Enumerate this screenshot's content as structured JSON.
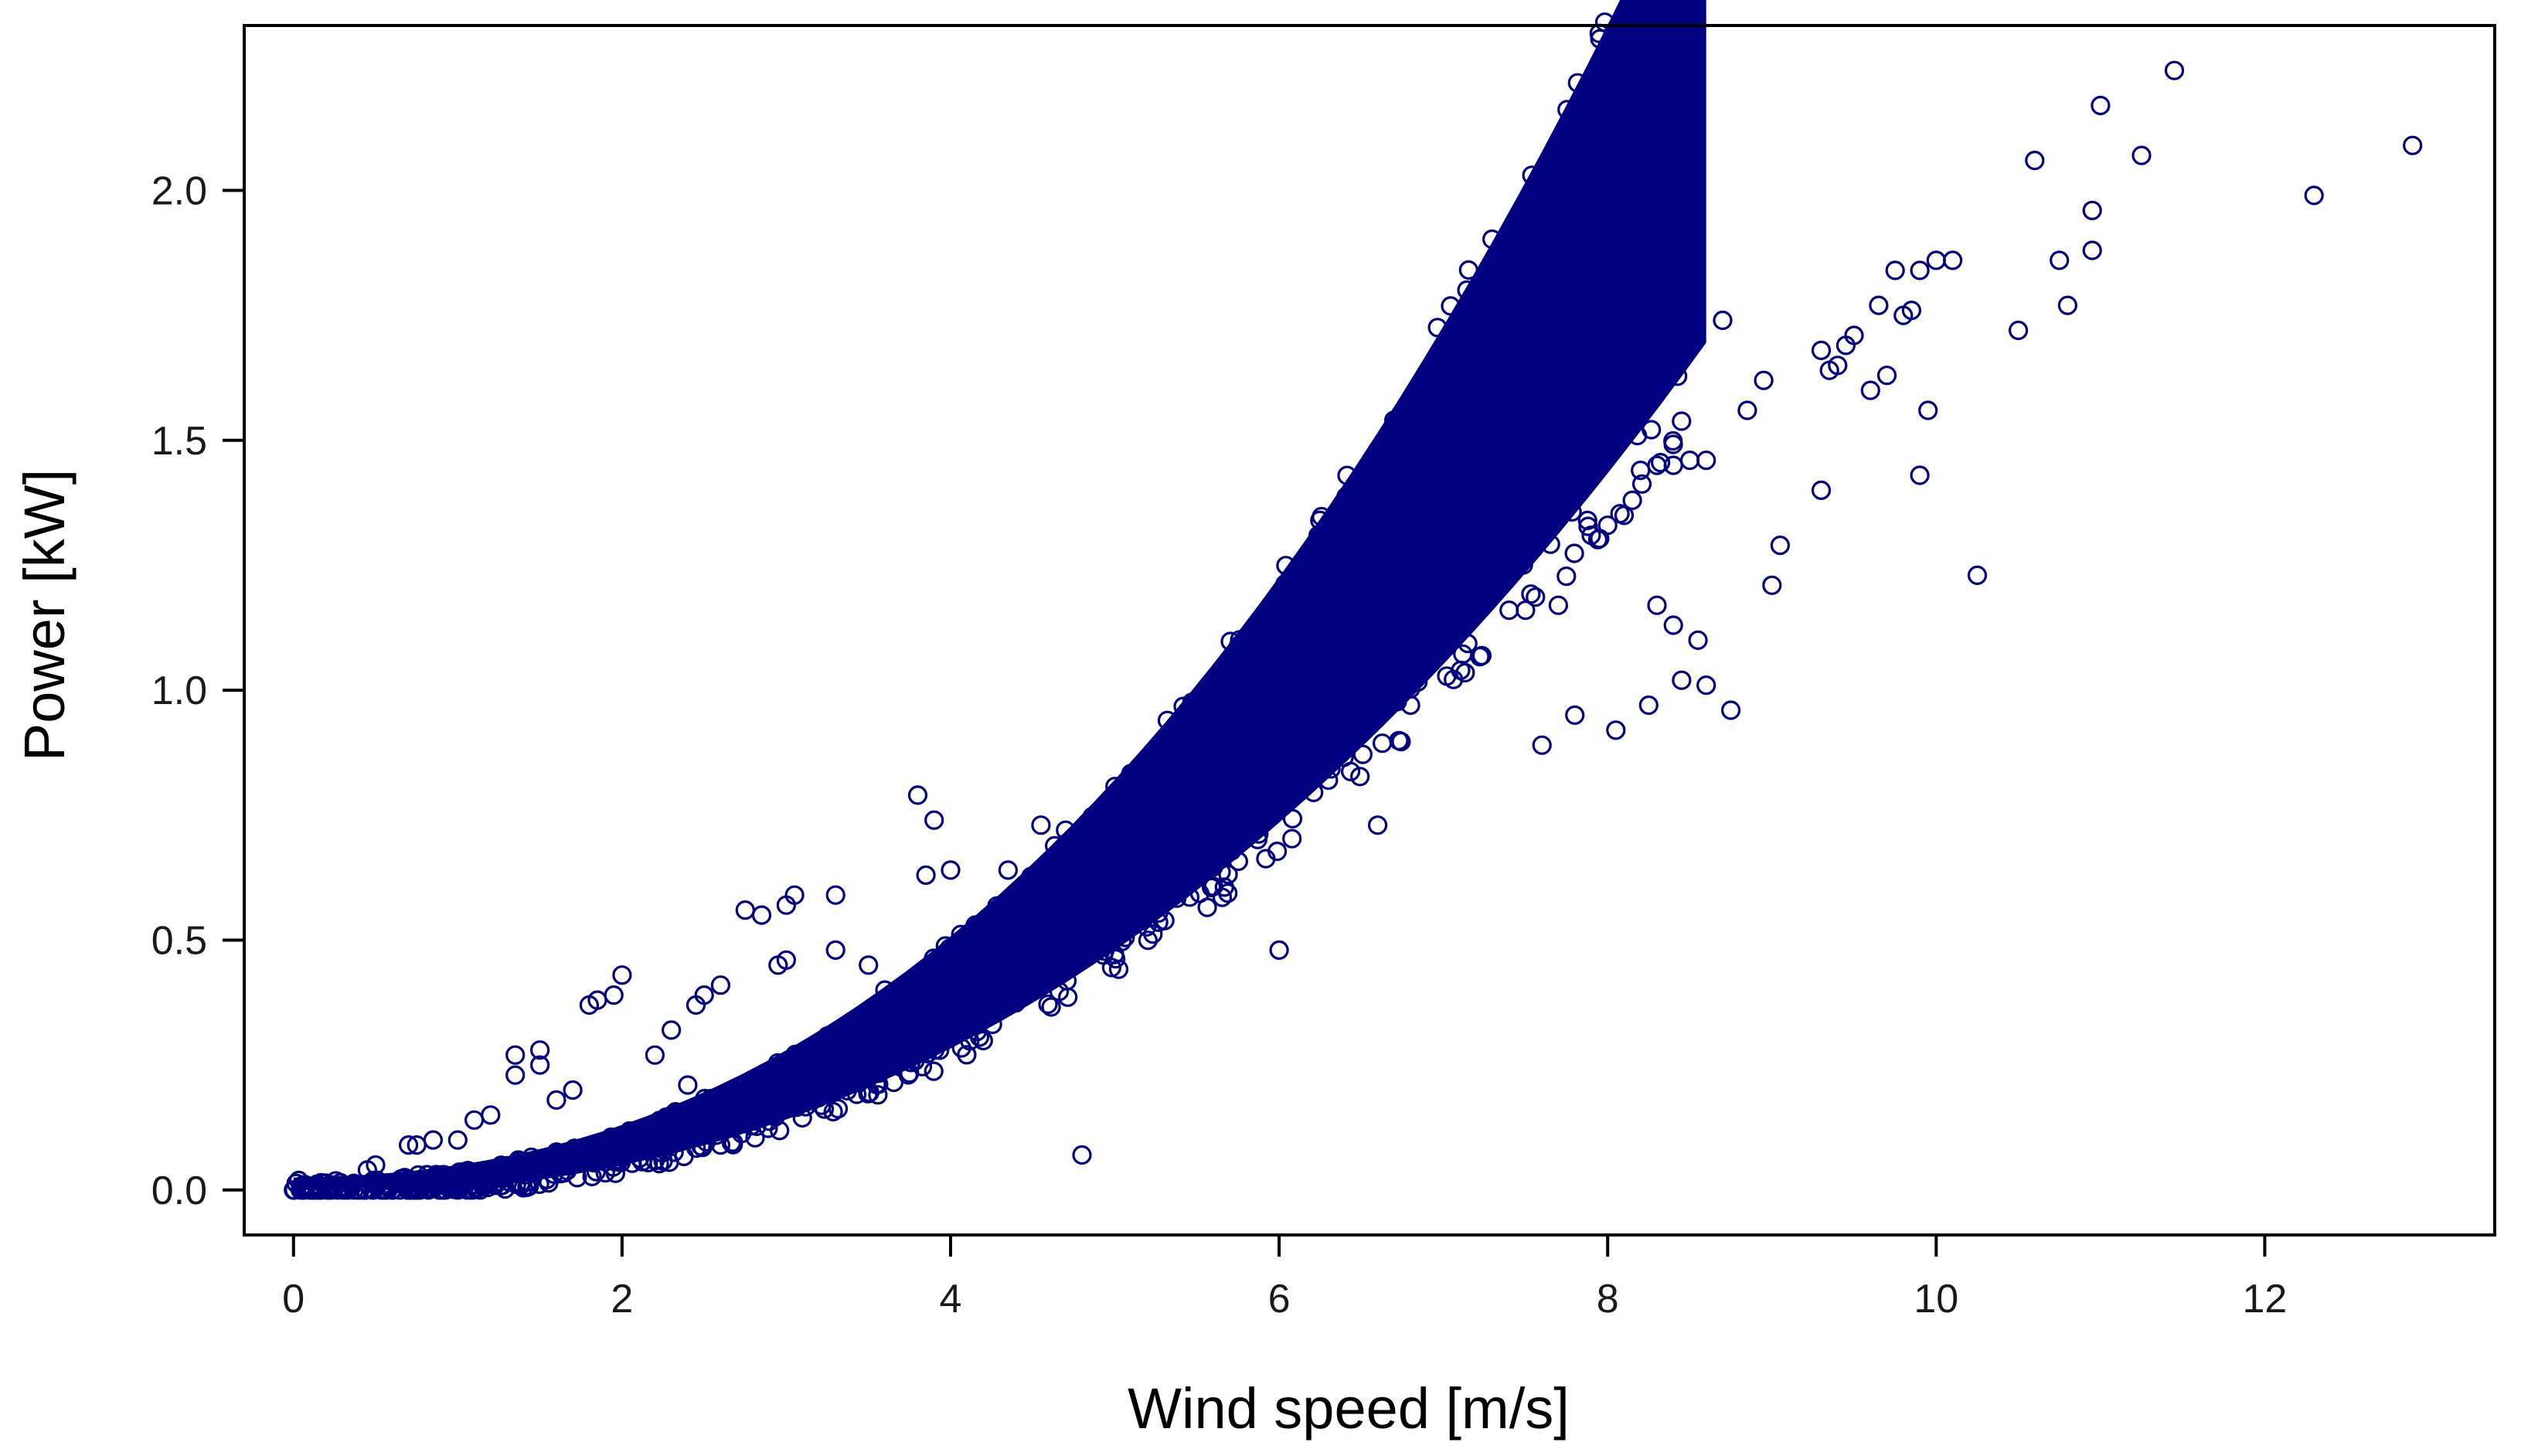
{
  "chart_data": {
    "type": "scatter",
    "title": "",
    "xlabel": "Wind speed [m/s]",
    "ylabel": "Power [kW]",
    "xlim": [
      -0.3,
      13.4
    ],
    "ylim": [
      -0.09,
      2.33
    ],
    "x_ticks": [
      0,
      2,
      4,
      6,
      8,
      10,
      12
    ],
    "x_tick_labels": [
      "0",
      "2",
      "4",
      "6",
      "8",
      "10",
      "12"
    ],
    "y_ticks": [
      0.0,
      0.5,
      1.0,
      1.5,
      2.0
    ],
    "y_tick_labels": [
      "0.0",
      "0.5",
      "1.0",
      "1.5",
      "2.0"
    ],
    "grid": false,
    "legend": "none",
    "marker": "open-circle",
    "color": "#000080",
    "series": [
      {
        "values_note_free": true,
        "x": [
          12.9,
          11.45,
          11.0,
          11.25,
          10.6,
          10.95,
          10.95,
          10.75,
          10.8,
          10.5,
          12.3,
          10.0,
          10.1,
          9.9,
          9.75,
          9.8,
          9.85,
          9.65,
          9.7,
          9.5,
          9.45,
          9.4,
          9.3,
          9.35,
          9.6,
          9.95,
          9.9,
          9.3,
          9.05,
          9.0,
          10.25,
          8.75,
          8.7,
          8.95,
          8.85,
          8.6,
          8.5,
          8.4,
          8.3,
          8.2,
          8.15,
          8.1,
          8.0,
          7.9,
          8.3,
          8.4,
          8.45,
          8.6,
          7.4,
          7.5,
          7.7,
          7.0,
          6.9,
          6.8,
          6.6,
          6.5,
          6.2,
          6.15,
          5.95,
          5.95,
          5.9,
          5.4,
          5.1,
          5.2,
          4.95,
          4.55,
          4.45,
          4.4,
          4.35,
          4.0,
          3.8,
          3.9,
          3.85,
          3.5,
          3.3,
          3.05,
          3.0,
          3.0,
          2.95,
          2.85,
          2.75,
          2.6,
          2.5,
          2.45,
          2.3,
          2.0,
          1.95,
          1.85,
          1.8,
          1.5,
          1.5,
          1.35,
          1.35,
          1.6,
          1.7,
          1.2,
          1.1,
          1.0,
          0.85,
          0.75,
          0.7,
          0.5,
          0.45,
          0.9,
          4.8,
          5.5,
          5.2,
          4.7,
          3.3,
          2.2,
          6.0,
          6.6,
          7.6,
          7.8,
          8.25,
          8.05,
          8.55,
          2.4,
          3.6,
          4.15,
          4.3,
          4.6,
          5.6,
          6.3,
          2.6,
          1.3
        ],
        "y": [
          2.09,
          2.24,
          2.17,
          2.07,
          2.06,
          1.96,
          1.88,
          1.86,
          1.77,
          1.72,
          1.99,
          1.86,
          1.86,
          1.84,
          1.84,
          1.75,
          1.76,
          1.77,
          1.63,
          1.71,
          1.69,
          1.65,
          1.68,
          1.64,
          1.6,
          1.56,
          1.43,
          1.4,
          1.29,
          1.21,
          1.23,
          0.96,
          1.74,
          1.62,
          1.56,
          1.46,
          1.46,
          1.45,
          1.45,
          1.44,
          1.38,
          1.35,
          1.33,
          1.31,
          1.17,
          1.13,
          1.02,
          1.01,
          1.16,
          1.16,
          1.17,
          1.12,
          1.06,
          0.97,
          0.97,
          0.96,
          0.99,
          0.94,
          0.87,
          0.84,
          0.93,
          0.88,
          0.76,
          0.76,
          0.75,
          0.73,
          0.6,
          0.55,
          0.64,
          0.64,
          0.79,
          0.74,
          0.63,
          0.45,
          0.59,
          0.59,
          0.57,
          0.46,
          0.45,
          0.55,
          0.56,
          0.41,
          0.39,
          0.37,
          0.32,
          0.43,
          0.39,
          0.38,
          0.37,
          0.28,
          0.25,
          0.27,
          0.23,
          0.18,
          0.2,
          0.15,
          0.14,
          0.1,
          0.1,
          0.09,
          0.09,
          0.05,
          0.04,
          0.03,
          0.07,
          0.87,
          0.8,
          0.72,
          0.48,
          0.27,
          0.48,
          0.73,
          0.89,
          0.95,
          0.97,
          0.92,
          1.1,
          0.21,
          0.4,
          0.53,
          0.56,
          0.51,
          0.7,
          0.82,
          0.09,
          0.04
        ]
      }
    ]
  }
}
